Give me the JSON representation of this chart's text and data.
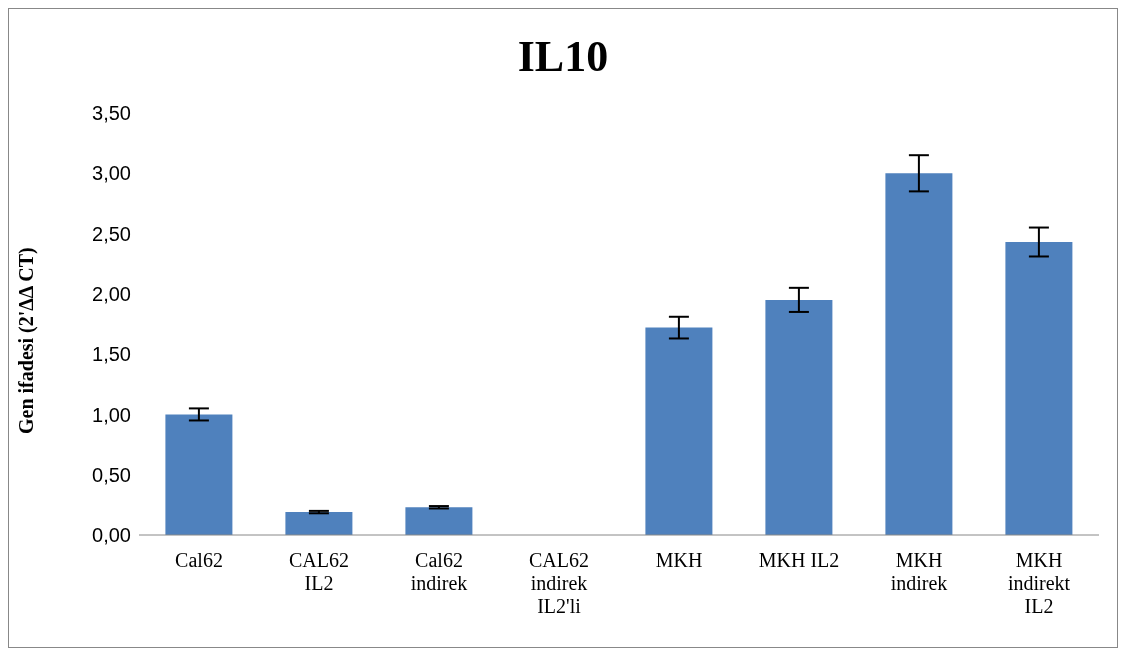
{
  "chart_data": {
    "type": "bar",
    "title": "IL10",
    "ylabel": "Gen ifadesi (2'ΔΔ CT)",
    "categories": [
      "Cal62",
      "CAL62 IL2",
      "Cal62 indirek",
      "CAL62 indirek IL2'li",
      "MKH",
      "MKH IL2",
      "MKH indirek",
      "MKH indirekt IL2"
    ],
    "values": [
      1.0,
      0.19,
      0.23,
      0.0,
      1.72,
      1.95,
      3.0,
      2.43
    ],
    "errors": [
      0.05,
      0.01,
      0.01,
      null,
      0.09,
      0.1,
      0.15,
      0.12
    ],
    "color": "#4f81bd",
    "ylim": [
      0,
      3.5
    ],
    "yticks": [
      {
        "value": 0,
        "label": "0,00"
      },
      {
        "value": 0.5,
        "label": "0,50"
      },
      {
        "value": 1,
        "label": "1,00"
      },
      {
        "value": 1.5,
        "label": "1,50"
      },
      {
        "value": 2,
        "label": "2,00"
      },
      {
        "value": 2.5,
        "label": "2,50"
      },
      {
        "value": 3,
        "label": "3,00"
      },
      {
        "value": 3.5,
        "label": "3,50"
      }
    ],
    "grid": false,
    "legend": false
  }
}
